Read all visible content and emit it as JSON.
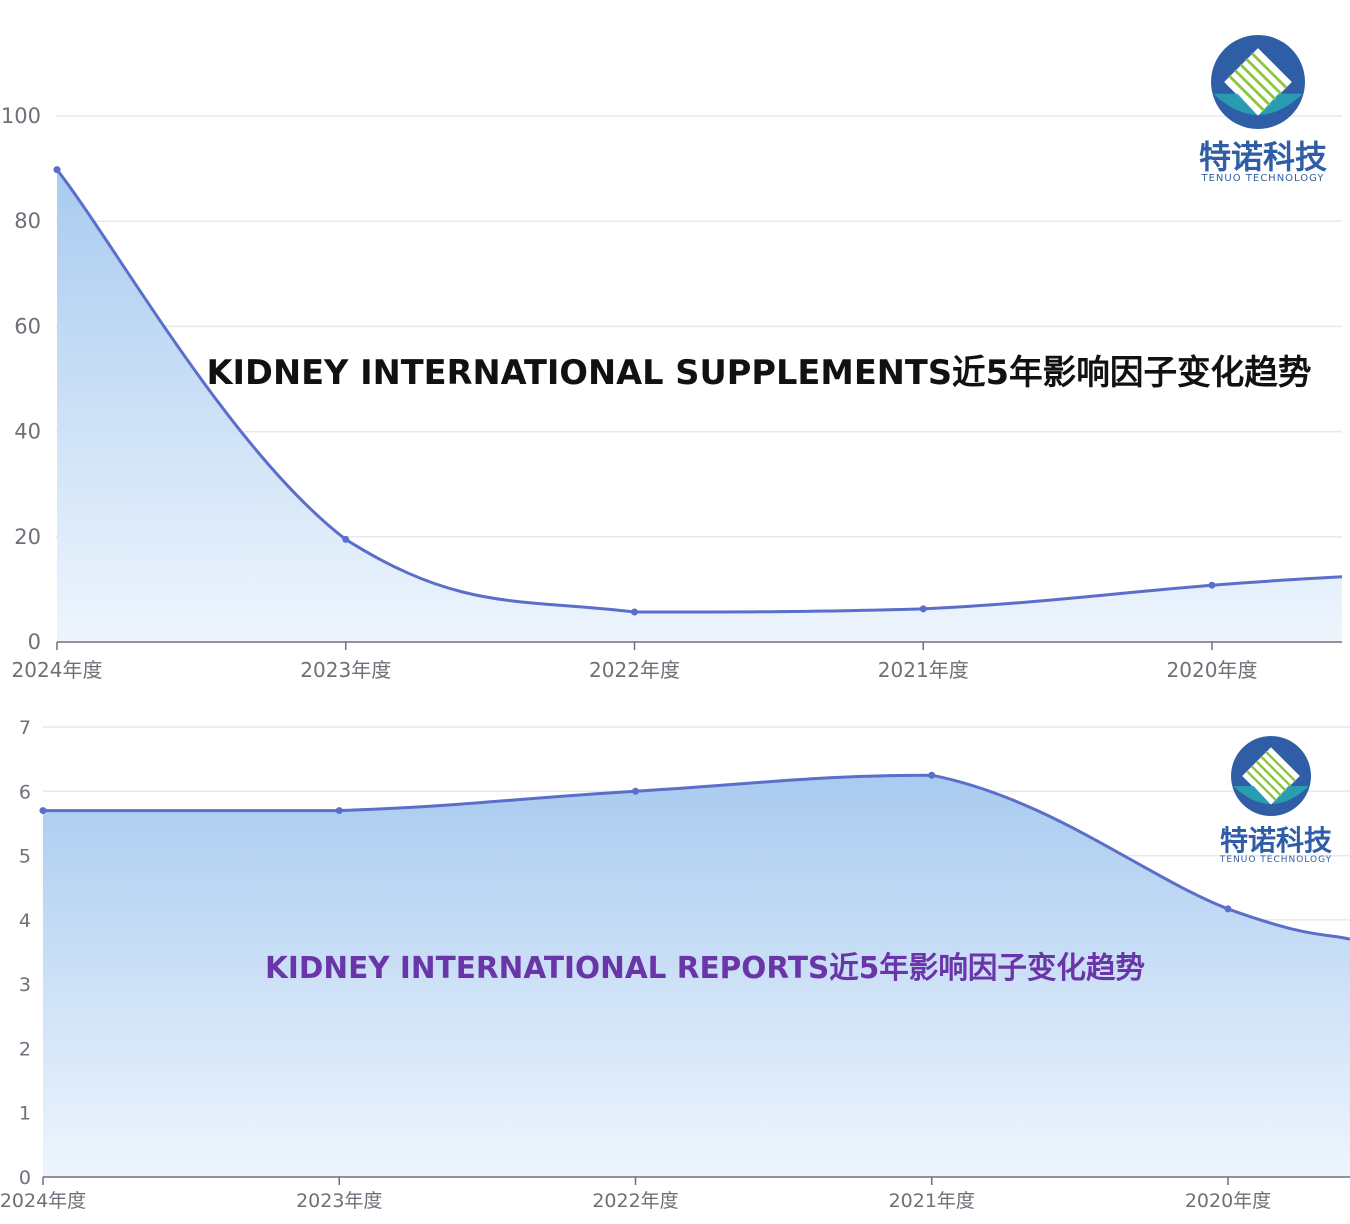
{
  "colors": {
    "line": "#5b6ec9",
    "area_top": "#a9cbf0",
    "area_bottom": "#eef5fd",
    "grid": "#e6e9f0",
    "axis": "#6e7079",
    "title1": "#111111",
    "title2": "#6a35a8",
    "logo_blue": "#2f5ea6",
    "logo_teal": "#2aa3b3",
    "logo_green": "#8cc63f"
  },
  "logo": {
    "name": "特诺科技",
    "subtitle": "TENUO TECHNOLOGY"
  },
  "chart_data": [
    {
      "type": "area",
      "title": "KIDNEY INTERNATIONAL SUPPLEMENTS近5年影响因子变化趋势",
      "categories": [
        "2024年度",
        "2023年度",
        "2022年度",
        "2021年度",
        "2020年度"
      ],
      "series": [
        {
          "values": [
            89.8,
            19.5,
            5.7,
            6.3,
            10.8
          ]
        }
      ],
      "trailing_value": 12.4,
      "y_ticks": [
        "0",
        "20",
        "40",
        "60",
        "80",
        "100"
      ],
      "ylim": [
        0,
        100
      ],
      "grid": true,
      "smooth": true
    },
    {
      "type": "area",
      "title": "KIDNEY INTERNATIONAL REPORTS近5年影响因子变化趋势",
      "categories": [
        "2024年度",
        "2023年度",
        "2022年度",
        "2021年度",
        "2020年度"
      ],
      "series": [
        {
          "values": [
            5.7,
            5.7,
            6.0,
            6.25,
            4.17
          ]
        }
      ],
      "trailing_value": 3.7,
      "y_ticks": [
        "0",
        "1",
        "2",
        "3",
        "4",
        "5",
        "6",
        "7"
      ],
      "ylim": [
        0,
        7
      ],
      "grid": true,
      "smooth": true
    }
  ]
}
